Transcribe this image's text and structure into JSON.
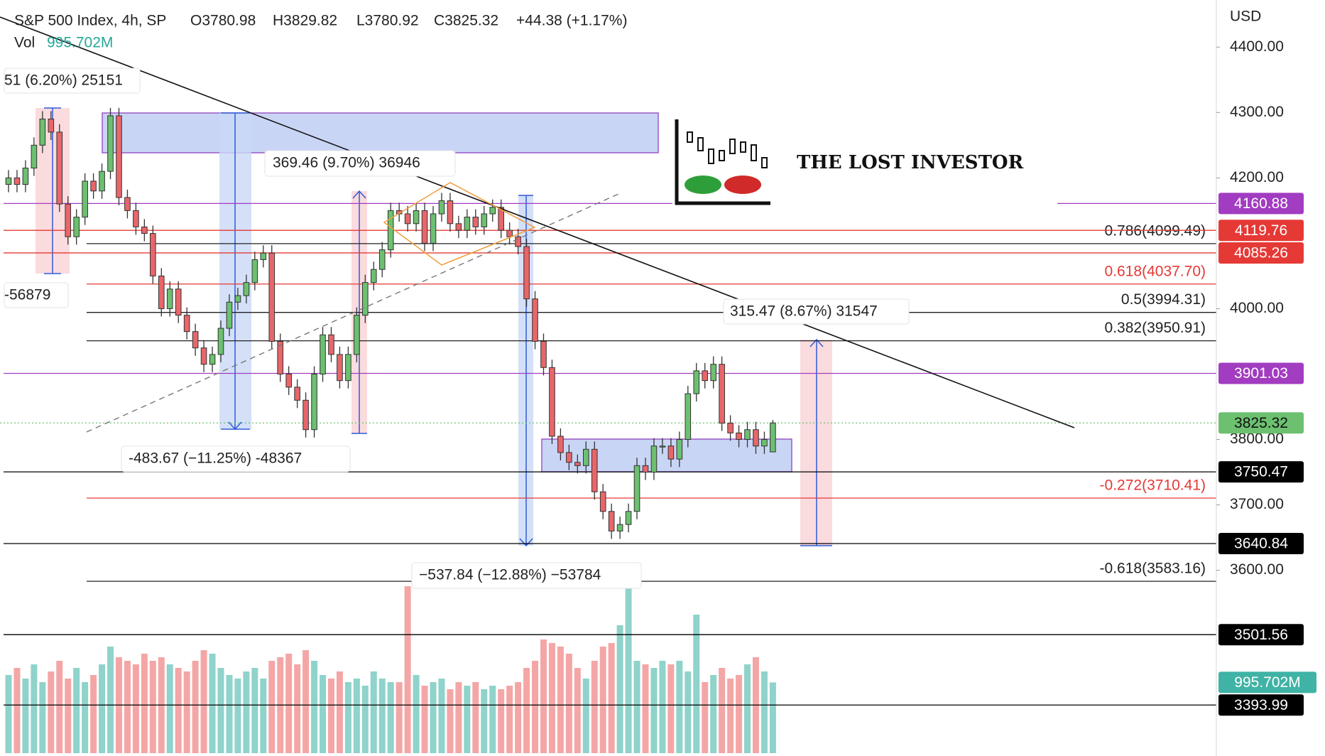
{
  "header": {
    "symbol": "S&P 500 Index, 4h, SP",
    "open": "O3780.98",
    "high": "H3829.82",
    "low": "L3780.92",
    "close": "C3825.32",
    "change": "+44.38 (+1.17%)",
    "vol_label": "Vol",
    "vol_value": "995.702M"
  },
  "logo": {
    "text": "THE LOST INVESTOR"
  },
  "measures": [
    "51 (6.20%) 25151",
    "369.46 (9.70%) 36946",
    "315.47 (8.67%) 31547",
    "-483.67 (−11.25%) -48367",
    "−537.84 (−12.88%) −53784",
    "-56879"
  ],
  "chart_data": {
    "type": "candlestick",
    "ylabel": "USD",
    "ylim": [
      3316,
      4472
    ],
    "yticks": [
      {
        "value": 3600,
        "label": "3600.00"
      },
      {
        "value": 3700,
        "label": "3700.00"
      },
      {
        "value": 3800,
        "label": "3800.00"
      },
      {
        "value": 4000,
        "label": "4000.00"
      },
      {
        "value": 4200,
        "label": "4200.00"
      },
      {
        "value": 4300,
        "label": "4300.00"
      },
      {
        "value": 4400,
        "label": "4400.00"
      }
    ],
    "up_color": "#6cc070",
    "down_color": "#e8666a",
    "volume_up_color": "#8fd3cb",
    "volume_down_color": "#f4a6a6",
    "vlim": [
      0,
      10600
    ],
    "open": [
      4190,
      4200,
      4190,
      4215,
      4250,
      4290,
      4270,
      4160,
      4110,
      4140,
      4195,
      4180,
      4210,
      4295,
      4170,
      4150,
      4125,
      4115,
      4050,
      4000,
      4030,
      3990,
      3965,
      3940,
      3915,
      3930,
      3970,
      4010,
      4020,
      4040,
      4075,
      4085,
      3950,
      3900,
      3880,
      3860,
      3815,
      3900,
      3960,
      3930,
      3890,
      3930,
      3990,
      4040,
      4060,
      4090,
      4150,
      4145,
      4130,
      4150,
      4100,
      4145,
      4165,
      4130,
      4120,
      4140,
      4125,
      4145,
      4155,
      4120,
      4110,
      4095,
      4015,
      3950,
      3910,
      3805,
      3780,
      3765,
      3760,
      3785,
      3720,
      3690,
      3660,
      3670,
      3690,
      3760,
      3750,
      3790,
      3790,
      3770,
      3800,
      3870,
      3905,
      3890,
      3915,
      3825,
      3810,
      3800,
      3815,
      3790,
      3780.98
    ],
    "high": [
      4212,
      4212,
      4227,
      4262,
      4302,
      4302,
      4282,
      4172,
      4152,
      4207,
      4207,
      4222,
      4307,
      4307,
      4182,
      4162,
      4137,
      4127,
      4062,
      4042,
      4042,
      4002,
      3977,
      3952,
      3942,
      3982,
      4022,
      4032,
      4052,
      4087,
      4097,
      4097,
      3962,
      3912,
      3892,
      3872,
      3912,
      3972,
      3972,
      3942,
      3942,
      4002,
      4052,
      4072,
      4102,
      4162,
      4162,
      4157,
      4162,
      4162,
      4157,
      4177,
      4177,
      4142,
      4152,
      4152,
      4157,
      4167,
      4167,
      4132,
      4122,
      4107,
      4027,
      3962,
      3922,
      3817,
      3792,
      3777,
      3797,
      3797,
      3732,
      3702,
      3682,
      3702,
      3772,
      3772,
      3802,
      3802,
      3802,
      3812,
      3882,
      3917,
      3917,
      3927,
      3927,
      3837,
      3822,
      3827,
      3827,
      3812,
      3829.82
    ],
    "low": [
      4178,
      4178,
      4178,
      4203,
      4238,
      4258,
      4148,
      4098,
      4098,
      4128,
      4168,
      4168,
      4198,
      4158,
      4138,
      4113,
      4103,
      4038,
      3988,
      3988,
      3978,
      3953,
      3928,
      3903,
      3903,
      3918,
      3958,
      3998,
      4008,
      4028,
      4063,
      3938,
      3888,
      3868,
      3848,
      3803,
      3803,
      3888,
      3918,
      3878,
      3878,
      3918,
      3978,
      4028,
      4048,
      4078,
      4133,
      4118,
      4118,
      4088,
      4088,
      4133,
      4118,
      4108,
      4108,
      4113,
      4113,
      4133,
      4108,
      4098,
      4083,
      4003,
      3938,
      3898,
      3793,
      3768,
      3753,
      3748,
      3748,
      3708,
      3678,
      3648,
      3648,
      3658,
      3678,
      3738,
      3738,
      3778,
      3758,
      3758,
      3788,
      3858,
      3878,
      3878,
      3813,
      3798,
      3788,
      3788,
      3778,
      3778,
      3780.92
    ],
    "close": [
      4200,
      4190,
      4215,
      4250,
      4290,
      4270,
      4160,
      4110,
      4140,
      4195,
      4180,
      4210,
      4295,
      4170,
      4150,
      4125,
      4115,
      4050,
      4000,
      4030,
      3990,
      3965,
      3940,
      3915,
      3930,
      3970,
      4010,
      4020,
      4040,
      4075,
      4085,
      3950,
      3900,
      3880,
      3860,
      3815,
      3900,
      3960,
      3930,
      3890,
      3930,
      3990,
      4040,
      4060,
      4090,
      4150,
      4145,
      4130,
      4150,
      4100,
      4145,
      4165,
      4130,
      4120,
      4140,
      4125,
      4145,
      4155,
      4120,
      4110,
      4095,
      4015,
      3950,
      3910,
      3805,
      3780,
      3765,
      3760,
      3785,
      3720,
      3690,
      3660,
      3670,
      3690,
      3760,
      3750,
      3790,
      3790,
      3770,
      3800,
      3870,
      3905,
      3890,
      3915,
      3825,
      3810,
      3800,
      3815,
      3790,
      3800,
      3825.32
    ],
    "volume": [
      1100,
      1200,
      1050,
      1250,
      1000,
      1150,
      1300,
      1050,
      1200,
      1000,
      1100,
      1250,
      1500,
      1350,
      1300,
      1250,
      1400,
      1300,
      1350,
      1250,
      1200,
      1150,
      1300,
      1450,
      1400,
      1200,
      1100,
      1050,
      1150,
      1200,
      1050,
      1300,
      1350,
      1400,
      1250,
      1450,
      1300,
      1100,
      1050,
      1150,
      1000,
      1050,
      950,
      1150,
      1050,
      1000,
      1000,
      2350,
      1100,
      950,
      1000,
      1050,
      900,
      1000,
      950,
      1000,
      900,
      950,
      900,
      950,
      1000,
      1200,
      1300,
      1600,
      1550,
      1500,
      1400,
      1200,
      1050,
      1300,
      1500,
      1550,
      1800,
      2650,
      1300,
      1250,
      1200,
      1300,
      1250,
      1300,
      1150,
      1950,
      1000,
      1100,
      1200,
      1050,
      1100,
      1250,
      1350,
      1150,
      995.702
    ],
    "levels": [
      {
        "price": 4160.88,
        "color": "#a23cc0"
      },
      {
        "price": 4119.76,
        "color": "#e53935"
      },
      {
        "price": 4085.26,
        "color": "#e53935"
      },
      {
        "price": 3901.03,
        "color": "#a23cc0"
      },
      {
        "price": 3825.32,
        "color": "#6cc070",
        "dotted": true
      },
      {
        "price": 3750.47,
        "color": "#000000"
      },
      {
        "price": 3640.84,
        "color": "#000000"
      },
      {
        "price": 3501.56,
        "color": "#000000"
      },
      {
        "price": 3393.99,
        "color": "#000000"
      }
    ],
    "fib": [
      {
        "label": "0.786(4099.49)",
        "level": 4099.49,
        "color": "#222222"
      },
      {
        "label": "0.618(4037.70)",
        "level": 4037.7,
        "color": "#e53935"
      },
      {
        "label": "0.5(3994.31)",
        "level": 3994.31,
        "color": "#222222"
      },
      {
        "label": "0.382(3950.91)",
        "level": 3950.91,
        "color": "#222222"
      },
      {
        "label": "-0.272(3710.41)",
        "level": 3710.41,
        "color": "#e53935"
      },
      {
        "label": "-0.618(3583.16)",
        "level": 3583.16,
        "color": "#222222"
      }
    ],
    "volume_tag_color": "#3fb3a5"
  }
}
